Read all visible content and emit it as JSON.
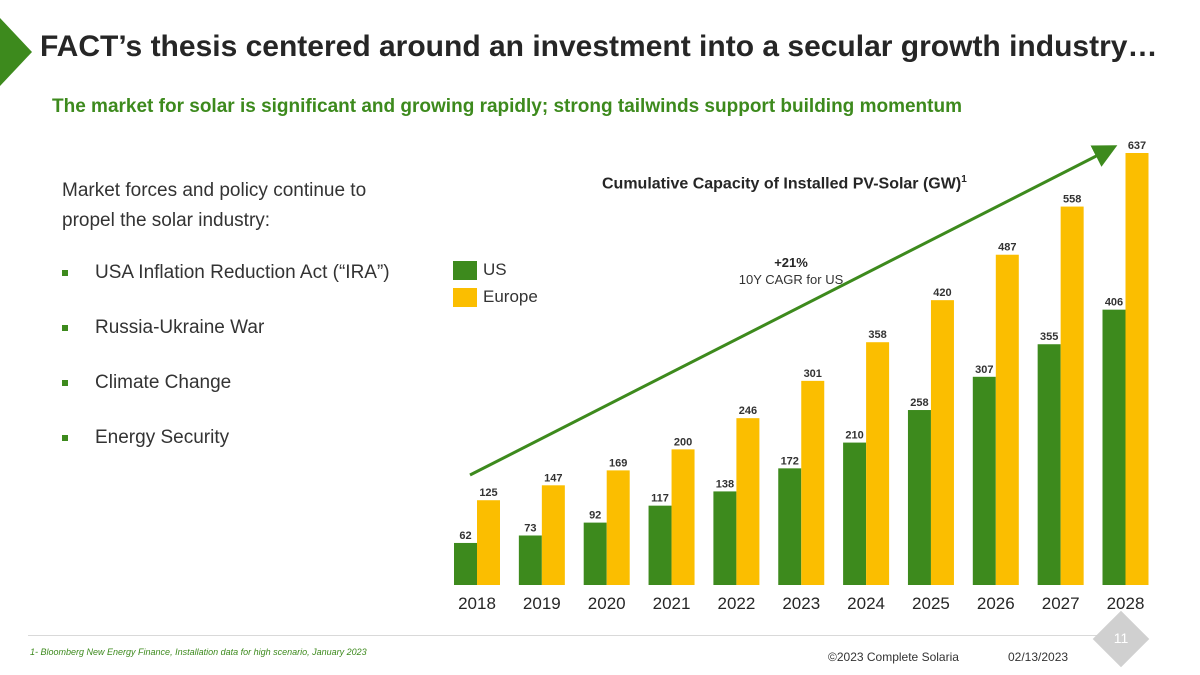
{
  "slide": {
    "title": "FACT’s thesis centered around an investment into a secular growth industry…",
    "subtitle": "The market for solar is significant and growing rapidly; strong tailwinds support building momentum",
    "intro_line1": "Market forces and policy continue to",
    "intro_line2": "propel the solar industry:",
    "bullets": [
      "USA Inflation Reduction Act (“IRA”)",
      "Russia-Ukraine War",
      "Climate Change",
      "Energy Security"
    ]
  },
  "legend": {
    "us_label": "US",
    "europe_label": "Europe"
  },
  "chart_data": {
    "type": "bar",
    "title": "Cumulative Capacity of Installed PV-Solar (GW)",
    "title_superscript": "1",
    "categories": [
      "2018",
      "2019",
      "2020",
      "2021",
      "2022",
      "2023",
      "2024",
      "2025",
      "2026",
      "2027",
      "2028"
    ],
    "series": [
      {
        "name": "US",
        "color": "#3d8a1d",
        "values": [
          62,
          73,
          92,
          117,
          138,
          172,
          210,
          258,
          307,
          355,
          406
        ]
      },
      {
        "name": "Europe",
        "color": "#fbbe00",
        "values": [
          125,
          147,
          169,
          200,
          246,
          301,
          358,
          420,
          487,
          558,
          637
        ]
      }
    ],
    "ylim": [
      0,
      637
    ],
    "annotation": {
      "value": "+21%",
      "label": "10Y CAGR for US",
      "arrow_color": "#3d8a1d"
    }
  },
  "footer": {
    "footnote": "1- Bloomberg New Energy Finance, Installation data for high scenario, January 2023",
    "copyright": "©2023 Complete Solaria",
    "date": "02/13/2023",
    "page_number": "11"
  }
}
